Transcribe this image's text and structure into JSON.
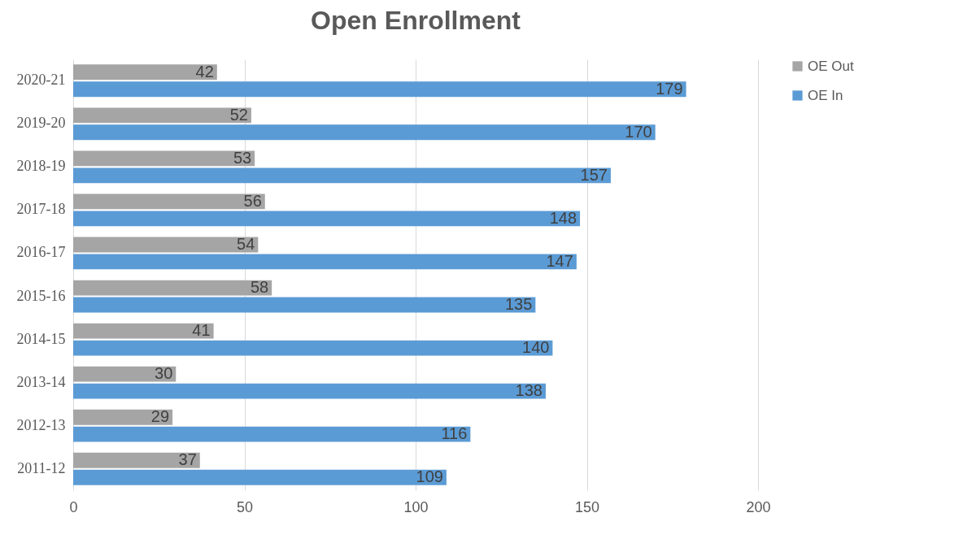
{
  "chart_data": {
    "type": "bar",
    "orientation": "horizontal",
    "title": "Open Enrollment",
    "categories": [
      "2020-21",
      "2019-20",
      "2018-19",
      "2017-18",
      "2016-17",
      "2015-16",
      "2014-15",
      "2013-14",
      "2012-13",
      "2011-12"
    ],
    "series": [
      {
        "name": "OE Out",
        "color": "#a5a5a5",
        "values": [
          42,
          52,
          53,
          56,
          54,
          58,
          41,
          30,
          29,
          37
        ]
      },
      {
        "name": "OE In",
        "color": "#5b9bd5",
        "values": [
          179,
          170,
          157,
          148,
          147,
          135,
          140,
          138,
          116,
          109
        ]
      }
    ],
    "xlim": [
      0,
      200
    ],
    "xticks": [
      0,
      50,
      100,
      150,
      200
    ],
    "grid": "x",
    "legend": "right",
    "data_labels": true
  }
}
